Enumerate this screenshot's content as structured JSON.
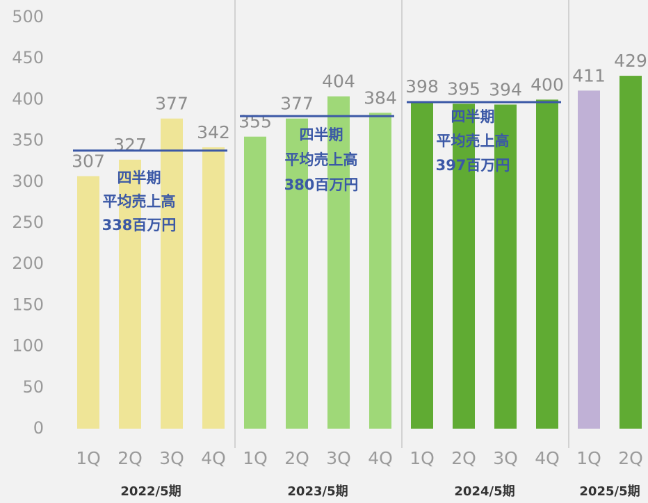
{
  "chart_data": {
    "type": "bar",
    "ylim": [
      0,
      500
    ],
    "yticks": [
      0,
      50,
      100,
      150,
      200,
      250,
      300,
      350,
      400,
      450,
      500
    ],
    "grid": false,
    "average_color": "#3b58a6",
    "groups": [
      {
        "name": "2022/5期",
        "categories": [
          "1Q",
          "2Q",
          "3Q",
          "4Q"
        ],
        "values": [
          307,
          327,
          377,
          342
        ],
        "colors": [
          "#efe597",
          "#efe597",
          "#efe597",
          "#efe597"
        ],
        "average": 338,
        "annotation": [
          "四半期",
          "平均売上高",
          "338百万円"
        ]
      },
      {
        "name": "2023/5期",
        "categories": [
          "1Q",
          "2Q",
          "3Q",
          "4Q"
        ],
        "values": [
          355,
          377,
          404,
          384
        ],
        "colors": [
          "#9fd878",
          "#9fd878",
          "#9fd878",
          "#9fd878"
        ],
        "average": 380,
        "annotation": [
          "四半期",
          "平均売上高",
          "380百万円"
        ]
      },
      {
        "name": "2024/5期",
        "categories": [
          "1Q",
          "2Q",
          "3Q",
          "4Q"
        ],
        "values": [
          398,
          395,
          394,
          400
        ],
        "colors": [
          "#60ab33",
          "#60ab33",
          "#60ab33",
          "#60ab33"
        ],
        "average": 397,
        "annotation": [
          "四半期",
          "平均売上高",
          "397百万円"
        ]
      },
      {
        "name": "2025/5期",
        "categories": [
          "1Q",
          "2Q"
        ],
        "values": [
          411,
          429
        ],
        "colors": [
          "#c0b1d6",
          "#60ab33"
        ]
      }
    ]
  }
}
